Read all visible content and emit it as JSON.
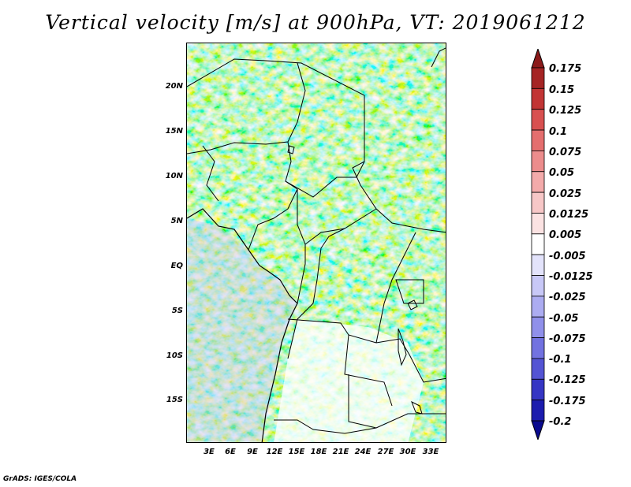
{
  "title": "Vertical velocity [m/s] at 900hPa, VT: 2019061212",
  "footer": "GrADS: IGES/COLA",
  "lat_labels": [
    "20N",
    "15N",
    "10N",
    "5N",
    "EQ",
    "5S",
    "10S",
    "15S"
  ],
  "lon_labels": [
    "3E",
    "6E",
    "9E",
    "12E",
    "15E",
    "18E",
    "21E",
    "24E",
    "27E",
    "30E",
    "33E"
  ],
  "colorbar": {
    "labels": [
      "0.175",
      "0.15",
      "0.125",
      "0.1",
      "0.075",
      "0.05",
      "0.025",
      "0.0125",
      "0.005",
      "-0.005",
      "-0.0125",
      "-0.025",
      "-0.05",
      "-0.075",
      "-0.1",
      "-0.125",
      "-0.175",
      "-0.2"
    ],
    "colors": [
      "#8b1a1a",
      "#a52424",
      "#c23535",
      "#d85050",
      "#e46e6e",
      "#ec8c8c",
      "#f3aaaa",
      "#f7c7c7",
      "#fbe2e2",
      "#ffffff",
      "#e3e3fb",
      "#c8c8f7",
      "#acacf1",
      "#9090ea",
      "#7272e0",
      "#5454d4",
      "#3636c4",
      "#1c1cae",
      "#0a0a8e"
    ]
  }
}
